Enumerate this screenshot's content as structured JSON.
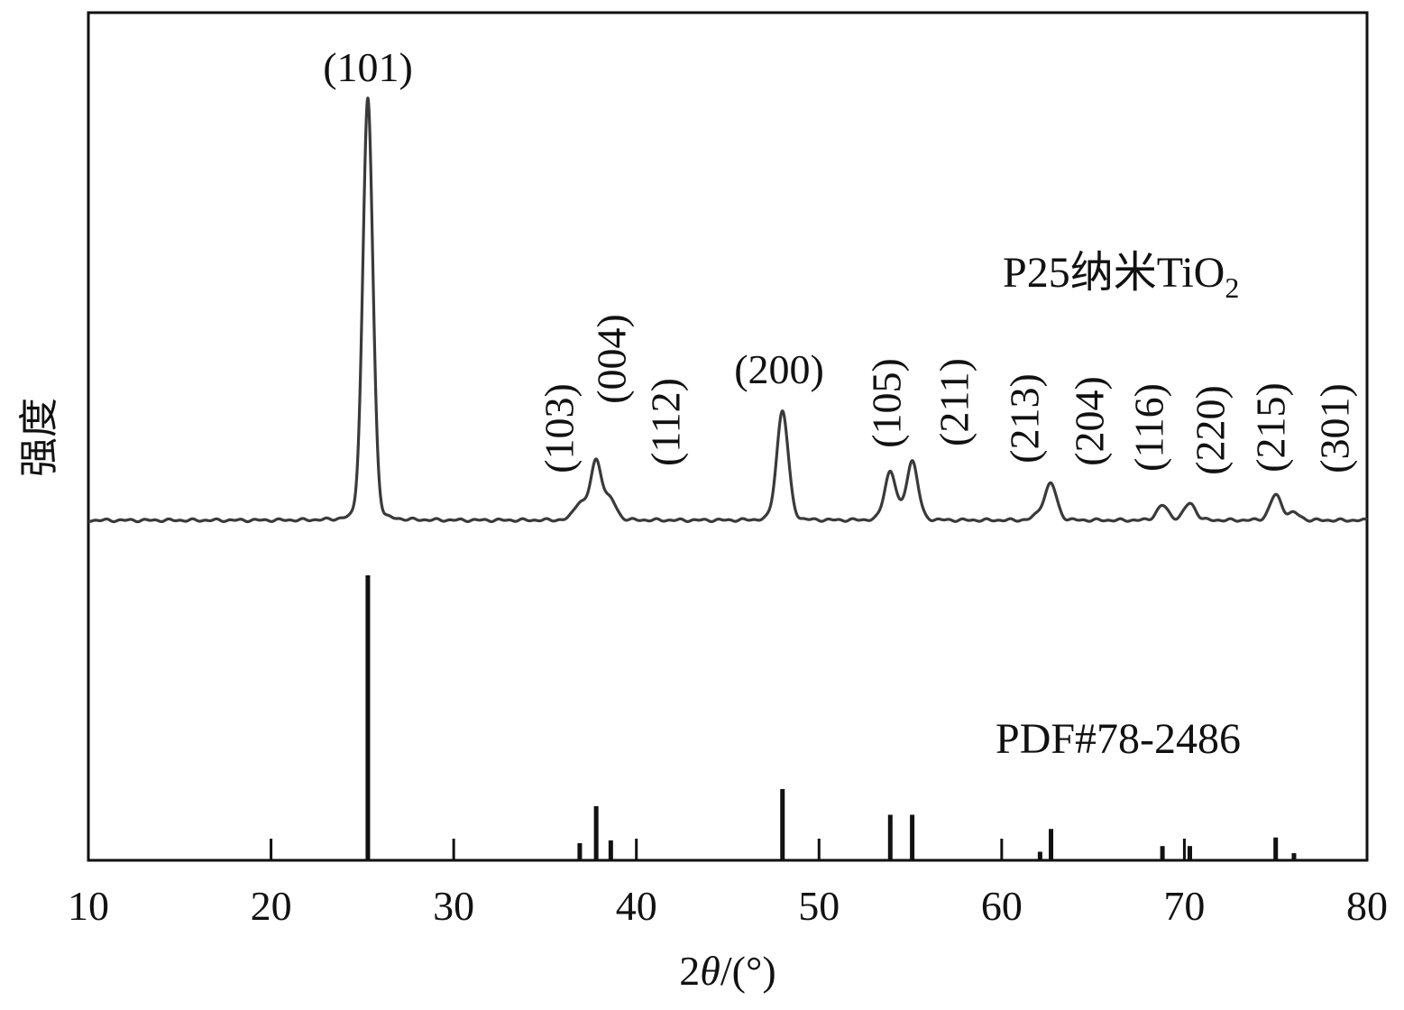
{
  "chart_data": {
    "type": "line",
    "xlabel_italic": "θ",
    "xlabel_prefix": "2",
    "xlabel_suffix": "/(°)",
    "ylabel": "强度",
    "xlim": [
      10,
      80
    ],
    "x_ticks": [
      10,
      20,
      30,
      40,
      50,
      60,
      70,
      80
    ],
    "y_ticks_shown": false,
    "grid": false,
    "series": [
      {
        "name": "P25纳米TiO2",
        "label_main": "P25纳米TiO",
        "label_sub": "2",
        "kind": "pattern",
        "baseline": 0,
        "peaks": [
          {
            "x": 25.3,
            "y": 100,
            "hkl": "(101)"
          },
          {
            "x": 36.9,
            "y": 4,
            "hkl": "(103)"
          },
          {
            "x": 37.8,
            "y": 14,
            "hkl": "(004)"
          },
          {
            "x": 38.6,
            "y": 4.5,
            "hkl": "(112)"
          },
          {
            "x": 48.0,
            "y": 26,
            "hkl": "(200)"
          },
          {
            "x": 53.9,
            "y": 11.5,
            "hkl": "(105)"
          },
          {
            "x": 55.1,
            "y": 14,
            "hkl": "(211)"
          },
          {
            "x": 62.1,
            "y": 1.5,
            "hkl": "(213)"
          },
          {
            "x": 62.7,
            "y": 8.5,
            "hkl": "(204)"
          },
          {
            "x": 68.8,
            "y": 3.5,
            "hkl": "(116)"
          },
          {
            "x": 70.3,
            "y": 4,
            "hkl": "(220)"
          },
          {
            "x": 75.0,
            "y": 6,
            "hkl": "(215)"
          },
          {
            "x": 76.0,
            "y": 1.7,
            "hkl": "(301)"
          }
        ]
      },
      {
        "name": "PDF#78-2486",
        "kind": "sticks",
        "sticks": [
          {
            "x": 25.3,
            "y": 100
          },
          {
            "x": 36.9,
            "y": 6
          },
          {
            "x": 37.8,
            "y": 19
          },
          {
            "x": 38.6,
            "y": 7
          },
          {
            "x": 48.0,
            "y": 25
          },
          {
            "x": 53.9,
            "y": 16
          },
          {
            "x": 55.1,
            "y": 16
          },
          {
            "x": 62.1,
            "y": 3
          },
          {
            "x": 62.7,
            "y": 11
          },
          {
            "x": 68.8,
            "y": 5
          },
          {
            "x": 70.3,
            "y": 5
          },
          {
            "x": 75.0,
            "y": 8
          },
          {
            "x": 76.0,
            "y": 2.5
          }
        ]
      }
    ]
  }
}
